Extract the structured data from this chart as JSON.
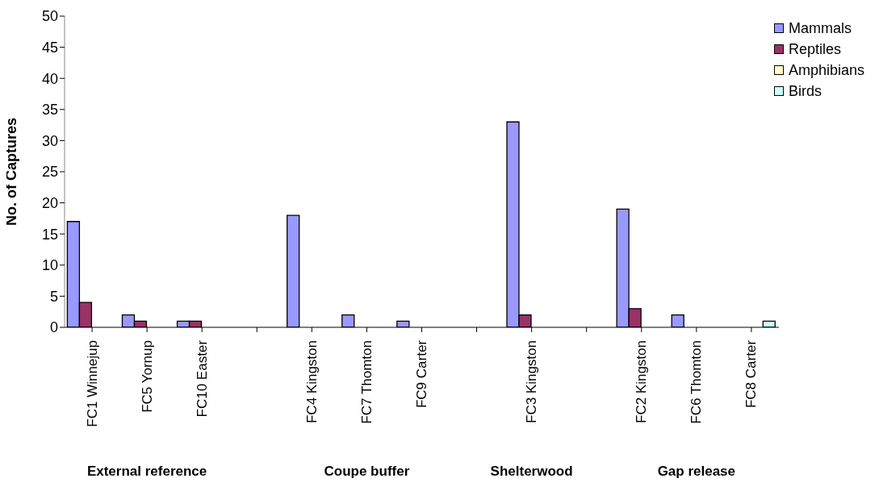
{
  "chart_data": {
    "type": "bar",
    "ylabel": "No. of Captures",
    "categories": [
      "FC1 Winnejup",
      "FC5 Yornup",
      "FC10 Easter",
      null,
      "FC4 Kingston",
      "FC7 Thomton",
      "FC9 Carter",
      null,
      "FC3 Kingston",
      null,
      "FC2 Kingston",
      "FC6 Thomton",
      "FC8 Carter"
    ],
    "series": [
      {
        "name": "Mammals",
        "color": "#9999ff",
        "values": [
          17,
          2,
          1,
          null,
          18,
          2,
          1,
          null,
          33,
          null,
          19,
          2,
          0
        ]
      },
      {
        "name": "Reptiles",
        "color": "#993366",
        "values": [
          4,
          1,
          1,
          null,
          0,
          0,
          0,
          null,
          2,
          null,
          3,
          0,
          0
        ]
      },
      {
        "name": "Amphibians",
        "color": "#ffffcc",
        "values": [
          0,
          0,
          0,
          null,
          0,
          0,
          0,
          null,
          0,
          null,
          0,
          0,
          0
        ]
      },
      {
        "name": "Birds",
        "color": "#ccffff",
        "values": [
          0,
          0,
          0,
          null,
          0,
          0,
          0,
          null,
          0,
          null,
          0,
          0,
          1
        ]
      }
    ],
    "ylim": [
      0,
      50
    ],
    "yticks": [
      0,
      5,
      10,
      15,
      20,
      25,
      30,
      35,
      40,
      45,
      50
    ],
    "grid": false,
    "legend": "top right",
    "annotations": [
      "External reference",
      "Coupe buffer",
      "Shelterwood",
      "Gap release"
    ]
  }
}
